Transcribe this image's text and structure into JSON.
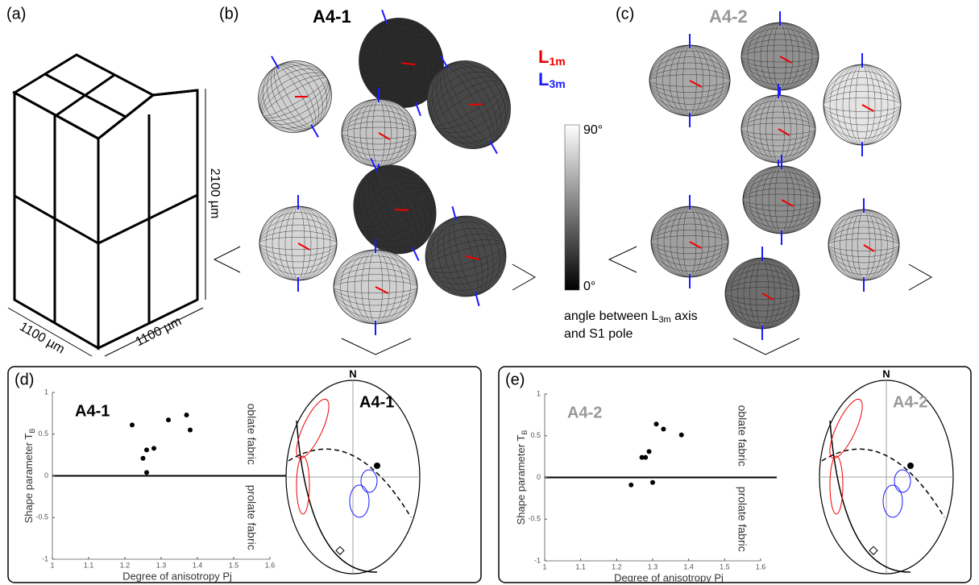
{
  "panels": {
    "a": "(a)",
    "b": "(b)",
    "c": "(c)",
    "d": "(d)",
    "e": "(e)"
  },
  "block": {
    "height": "2100 µm",
    "depth": "1100 µm",
    "width": "1100 µm"
  },
  "titles": {
    "b": "A4-1",
    "c": "A4-2"
  },
  "legend": {
    "l1": "L",
    "l1sub": "1m",
    "l3": "L",
    "l3sub": "3m"
  },
  "colorbar": {
    "max": "90°",
    "min": "0°",
    "caption_a": "angle between L",
    "caption_sub": "3m",
    "caption_b": " axis",
    "caption_c": "and S1 pole"
  },
  "stereonets": [
    {
      "north": "N",
      "title": "A4-1"
    },
    {
      "north": "N",
      "title": "A4-2"
    }
  ],
  "chart_data": [
    {
      "type": "scatter",
      "title": "A4-1",
      "title_color": "#000000",
      "color": "#000000",
      "x": [
        1.22,
        1.25,
        1.26,
        1.28,
        1.32,
        1.37,
        1.38,
        1.26
      ],
      "y": [
        0.61,
        0.21,
        0.31,
        0.33,
        0.67,
        0.73,
        0.55,
        0.04
      ],
      "xlabel": "Degree of anisotropy Pj",
      "ylabel": "Shape parameter T",
      "ylabel_sub": "B",
      "annotations": [
        "oblate fabric",
        "prolate fabric"
      ],
      "xlim": [
        1,
        1.6
      ],
      "xticks": [
        1,
        1.1,
        1.2,
        1.3,
        1.4,
        1.5,
        1.6
      ],
      "ylim": [
        -1,
        1
      ],
      "yticks": [
        -1,
        -0.5,
        0,
        0.5,
        1
      ]
    },
    {
      "type": "scatter",
      "title": "A4-2",
      "title_color": "#999999",
      "color": "#000000",
      "x": [
        1.24,
        1.27,
        1.28,
        1.29,
        1.31,
        1.33,
        1.38,
        1.3
      ],
      "y": [
        -0.09,
        0.24,
        0.24,
        0.31,
        0.64,
        0.58,
        0.51,
        -0.06
      ],
      "xlabel": "Degree of anisotropy Pj",
      "ylabel": "Shape parameter T",
      "ylabel_sub": "B",
      "annotations": [
        "oblate fabric",
        "prolate fabric"
      ],
      "xlim": [
        1,
        1.6
      ],
      "xticks": [
        1,
        1.1,
        1.2,
        1.3,
        1.4,
        1.5,
        1.6
      ],
      "ylim": [
        -1,
        1
      ],
      "yticks": [
        -1,
        -0.5,
        0,
        0.5,
        1
      ]
    }
  ]
}
